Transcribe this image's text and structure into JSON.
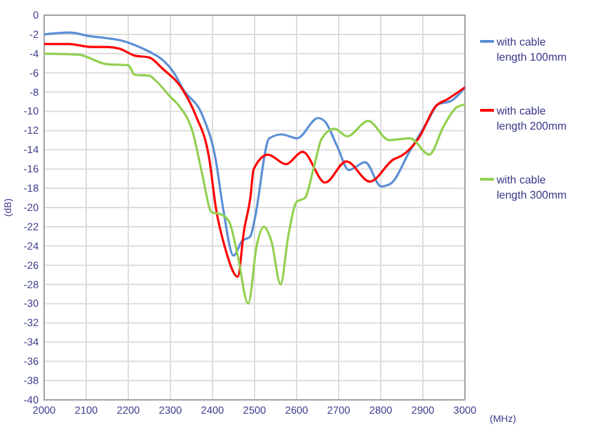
{
  "chart_data": {
    "type": "line",
    "xlabel": "(MHz)",
    "ylabel": "(dB)",
    "xlim": [
      2000,
      3000
    ],
    "xticks": [
      2000,
      2100,
      2200,
      2300,
      2400,
      2500,
      2600,
      2700,
      2800,
      2900,
      3000
    ],
    "ylim": [
      -40,
      0
    ],
    "yticks": [
      -40,
      -38,
      -36,
      -34,
      -32,
      -30,
      -28,
      -26,
      -24,
      -22,
      -20,
      -18,
      -16,
      -14,
      -12,
      -10,
      -8,
      -6,
      -4,
      -2,
      0
    ],
    "grid": true,
    "legend": "right",
    "marker": "none",
    "line_style": "solid",
    "series": [
      {
        "name": "with cable length 100mm",
        "color": "#5b8fd6",
        "x": [
          2000,
          2060,
          2110,
          2150,
          2180,
          2215,
          2250,
          2280,
          2310,
          2330,
          2376,
          2408,
          2425,
          2450,
          2470,
          2490,
          2500,
          2535,
          2565,
          2601,
          2651,
          2668,
          2697,
          2724,
          2763,
          2801,
          2824,
          2868,
          2913,
          2935,
          2968,
          3000
        ],
        "values": [
          -2,
          -1.8,
          -2.2,
          -2.4,
          -2.6,
          -3.1,
          -3.8,
          -4.6,
          -6.1,
          -7.7,
          -10.4,
          -15.1,
          -20,
          -25,
          -23.5,
          -23,
          -21.3,
          -12.8,
          -12.4,
          -12.8,
          -10.7,
          -11.1,
          -13.7,
          -16.1,
          -15.3,
          -17.8,
          -17.5,
          -14.2,
          -10.9,
          -9.3,
          -8.9,
          -7.5
        ]
      },
      {
        "name": "with cable length 200mm",
        "color": "#ff0000",
        "x": [
          2000,
          2060,
          2110,
          2150,
          2180,
          2215,
          2250,
          2280,
          2330,
          2360,
          2393,
          2408,
          2430,
          2460,
          2475,
          2490,
          2498,
          2532,
          2575,
          2614,
          2668,
          2718,
          2774,
          2830,
          2850,
          2890,
          2930,
          2960,
          3000
        ],
        "values": [
          -3,
          -3,
          -3.3,
          -3.3,
          -3.5,
          -4.2,
          -4.4,
          -5.5,
          -7.8,
          -10.4,
          -15.1,
          -20,
          -24.2,
          -27.2,
          -22.4,
          -19,
          -16,
          -14.5,
          -15.5,
          -14.2,
          -17.4,
          -15.2,
          -17.3,
          -15,
          -14.6,
          -12.8,
          -9.5,
          -8.7,
          -7.5
        ]
      },
      {
        "name": "with cable length 300mm",
        "color": "#92d050",
        "x": [
          2000,
          2080,
          2150,
          2200,
          2215,
          2250,
          2265,
          2300,
          2320,
          2354,
          2376,
          2398,
          2420,
          2440,
          2460,
          2485,
          2505,
          2522,
          2540,
          2562,
          2580,
          2600,
          2620,
          2640,
          2660,
          2690,
          2720,
          2770,
          2820,
          2870,
          2915,
          2950,
          2980,
          3000
        ],
        "values": [
          -4,
          -4.1,
          -5.1,
          -5.2,
          -6.2,
          -6.3,
          -6.8,
          -8.5,
          -9.4,
          -12.3,
          -16.6,
          -20.5,
          -20.7,
          -21.5,
          -25,
          -30,
          -24,
          -22,
          -23.5,
          -28,
          -23,
          -19.4,
          -19,
          -16,
          -12.8,
          -11.8,
          -12.6,
          -11,
          -13,
          -12.8,
          -14.5,
          -11.5,
          -9.6,
          -9.3
        ]
      }
    ]
  }
}
